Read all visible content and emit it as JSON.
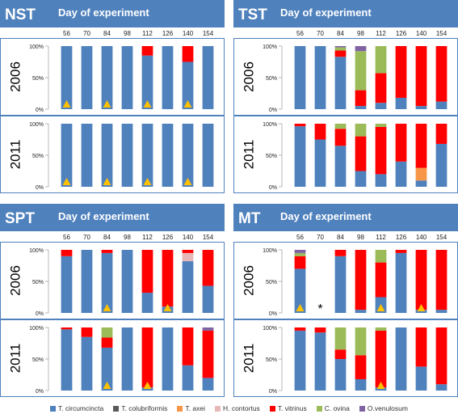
{
  "header": {
    "day_label": "Day of experiment"
  },
  "colors": {
    "T. circumcincta": "#4f81bd",
    "T. colubriformis": "#5a5a5a",
    "T. axei": "#f79646",
    "H. contortus": "#e6b9b8",
    "T. vitrinus": "#ff0000",
    "C. ovina": "#9bbb59",
    "O. venulosum": "#8064a2",
    "header_bg": "#4f81bd",
    "panel_bg": "#dce6f1",
    "marker": "#ffc000"
  },
  "legend": {
    "items": [
      {
        "label": "T. circumcincta",
        "color": "#4f81bd"
      },
      {
        "label": "T. colubriformis",
        "color": "#5a5a5a"
      },
      {
        "label": "T. axei",
        "color": "#f79646"
      },
      {
        "label": "H. contortus",
        "color": "#e6b9b8"
      },
      {
        "label": "T. vitrinus",
        "color": "#ff0000"
      },
      {
        "label": "C. ovina",
        "color": "#9bbb59"
      },
      {
        "label": "O.venulosum",
        "color": "#8064a2"
      }
    ]
  },
  "chart_data": [
    {
      "type": "bar",
      "title": "NST",
      "categories": [
        "56",
        "70",
        "84",
        "98",
        "112",
        "126",
        "140",
        "154"
      ],
      "ytick_labels": [
        "100%",
        "50%",
        "0%"
      ],
      "rows": [
        {
          "year": "2006",
          "bars": [
            {
              "T. circumcincta": 100
            },
            {
              "T. circumcincta": 100
            },
            {
              "T. circumcincta": 100
            },
            {
              "T. circumcincta": 100
            },
            {
              "T. circumcincta": 85,
              "T. vitrinus": 15
            },
            {
              "T. circumcincta": 100
            },
            {
              "T. circumcincta": 75,
              "T. vitrinus": 25
            },
            {
              "T. circumcincta": 100
            }
          ],
          "markers": [
            "56",
            "84",
            "112",
            "140"
          ]
        },
        {
          "year": "2011",
          "bars": [
            {
              "T. circumcincta": 100
            },
            {
              "T. circumcincta": 100
            },
            {
              "T. circumcincta": 100
            },
            {
              "T. circumcincta": 100
            },
            {
              "T. circumcincta": 100
            },
            {
              "T. circumcincta": 100
            },
            {
              "T. circumcincta": 100
            },
            {
              "T. circumcincta": 100
            }
          ],
          "markers": [
            "56",
            "84",
            "112",
            "140"
          ]
        }
      ]
    },
    {
      "type": "bar",
      "title": "TST",
      "categories": [
        "56",
        "70",
        "84",
        "98",
        "112",
        "126",
        "140",
        "154"
      ],
      "ytick_labels": [
        "100%",
        "50%",
        "0%"
      ],
      "rows": [
        {
          "year": "2006",
          "bars": [
            {
              "T. circumcincta": 100
            },
            {
              "T. circumcincta": 100
            },
            {
              "T. circumcincta": 83,
              "T. vitrinus": 10,
              "C. ovina": 5,
              "O. venulosum": 2
            },
            {
              "T. circumcincta": 5,
              "T. vitrinus": 25,
              "C. ovina": 62,
              "O. venulosum": 8
            },
            {
              "T. circumcincta": 10,
              "T. vitrinus": 47,
              "C. ovina": 43
            },
            {
              "T. circumcincta": 18,
              "T. vitrinus": 82
            },
            {
              "T. circumcincta": 5,
              "T. vitrinus": 95
            },
            {
              "T. circumcincta": 12,
              "T. vitrinus": 88
            }
          ],
          "markers": []
        },
        {
          "year": "2011",
          "bars": [
            {
              "T. circumcincta": 96,
              "T. vitrinus": 4
            },
            {
              "T. circumcincta": 75,
              "T. vitrinus": 25
            },
            {
              "T. circumcincta": 65,
              "T. vitrinus": 27,
              "C. ovina": 8
            },
            {
              "T. circumcincta": 25,
              "T. vitrinus": 55,
              "C. ovina": 20
            },
            {
              "T. circumcincta": 20,
              "T. vitrinus": 75,
              "C. ovina": 5
            },
            {
              "T. circumcincta": 40,
              "T. vitrinus": 60
            },
            {
              "T. circumcincta": 10,
              "T. vitrinus": 70,
              "T. axei": 20
            },
            {
              "T. circumcincta": 68,
              "T. vitrinus": 32
            }
          ],
          "markers": []
        }
      ]
    },
    {
      "type": "bar",
      "title": "SPT",
      "categories": [
        "56",
        "70",
        "84",
        "98",
        "112",
        "126",
        "140",
        "154"
      ],
      "ytick_labels": [
        "100%",
        "50%",
        "0%"
      ],
      "rows": [
        {
          "year": "2006",
          "bars": [
            {
              "T. circumcincta": 90,
              "T. vitrinus": 10
            },
            {
              "T. circumcincta": 100
            },
            {
              "T. circumcincta": 95,
              "T. vitrinus": 5
            },
            {
              "T. circumcincta": 100
            },
            {
              "T. circumcincta": 32,
              "T. vitrinus": 68
            },
            {
              "T. circumcincta": 10,
              "T. vitrinus": 90
            },
            {
              "T. circumcincta": 82,
              "T. vitrinus": 5,
              "H. contortus": 13
            },
            {
              "T. circumcincta": 43,
              "T. vitrinus": 57
            }
          ],
          "markers": [
            "84",
            "126"
          ]
        },
        {
          "year": "2011",
          "bars": [
            {
              "T. circumcincta": 97,
              "T. vitrinus": 3
            },
            {
              "T. circumcincta": 85,
              "T. vitrinus": 15
            },
            {
              "T. circumcincta": 68,
              "T. vitrinus": 16,
              "C. ovina": 16
            },
            {
              "T. circumcincta": 100
            },
            {
              "T. circumcincta": 5,
              "T. vitrinus": 95
            },
            {
              "T. circumcincta": 100
            },
            {
              "T. circumcincta": 40,
              "T. vitrinus": 60
            },
            {
              "T. circumcincta": 20,
              "T. vitrinus": 75,
              "O. venulosum": 5
            }
          ],
          "markers": [
            "84",
            "112"
          ]
        }
      ]
    },
    {
      "type": "bar",
      "title": "MT",
      "categories": [
        "56",
        "70",
        "84",
        "98",
        "112",
        "126",
        "140",
        "154"
      ],
      "ytick_labels": [
        "100%",
        "50%",
        "0%"
      ],
      "rows": [
        {
          "year": "2006",
          "bars": [
            {
              "T. circumcincta": 70,
              "T. vitrinus": 20,
              "C. ovina": 5,
              "O. venulosum": 5
            },
            {},
            {
              "T. circumcincta": 90,
              "T. vitrinus": 10
            },
            {
              "T. circumcincta": 5,
              "T. vitrinus": 95
            },
            {
              "T. circumcincta": 25,
              "T. vitrinus": 55,
              "C. ovina": 20
            },
            {
              "T. circumcincta": 95,
              "T. vitrinus": 5
            },
            {
              "T. circumcincta": 5,
              "T. vitrinus": 95
            },
            {
              "T. circumcincta": 5,
              "T. vitrinus": 95
            }
          ],
          "markers": [
            "56",
            "112",
            "140"
          ],
          "annotations": [
            {
              "category": "70",
              "text": "*"
            }
          ]
        },
        {
          "year": "2011",
          "bars": [
            {
              "T. circumcincta": 95,
              "T. vitrinus": 5
            },
            {
              "T. circumcincta": 92,
              "T. vitrinus": 8
            },
            {
              "T. circumcincta": 50,
              "T. vitrinus": 15,
              "C. ovina": 35
            },
            {
              "T. circumcincta": 18,
              "T. vitrinus": 38,
              "C. ovina": 44
            },
            {
              "T. circumcincta": 5,
              "T. vitrinus": 90,
              "C. ovina": 5
            },
            {
              "T. circumcincta": 100
            },
            {
              "T. circumcincta": 38,
              "T. vitrinus": 62
            },
            {
              "T. circumcincta": 10,
              "T. vitrinus": 90
            }
          ],
          "markers": [
            "112"
          ]
        }
      ]
    }
  ]
}
